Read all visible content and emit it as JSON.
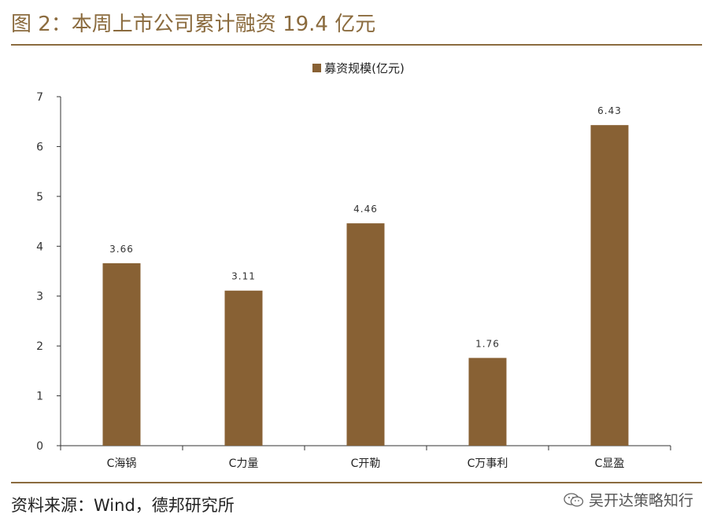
{
  "title": "图 2：本周上市公司累计融资 19.4 亿元",
  "source": "资料来源：Wind，德邦研究所",
  "watermark": "吴开达策略知行",
  "watermark_icon": "wechat-icon",
  "colors": {
    "bar": "#886134",
    "accent": "#8b6b3e",
    "axis": "#333333"
  },
  "chart_data": {
    "type": "bar",
    "categories": [
      "C海锅",
      "C力量",
      "C开勒",
      "C万事利",
      "C显盈"
    ],
    "series": [
      {
        "name": "募资规模(亿元)",
        "values": [
          3.66,
          3.11,
          4.46,
          1.76,
          6.43
        ]
      }
    ],
    "data_labels": [
      "3.66",
      "3.11",
      "4.46",
      "1.76",
      "6.43"
    ],
    "yticks": [
      0,
      1,
      2,
      3,
      4,
      5,
      6,
      7
    ],
    "ylim": [
      0,
      7
    ],
    "legend_position": "top-center",
    "grid": false
  }
}
